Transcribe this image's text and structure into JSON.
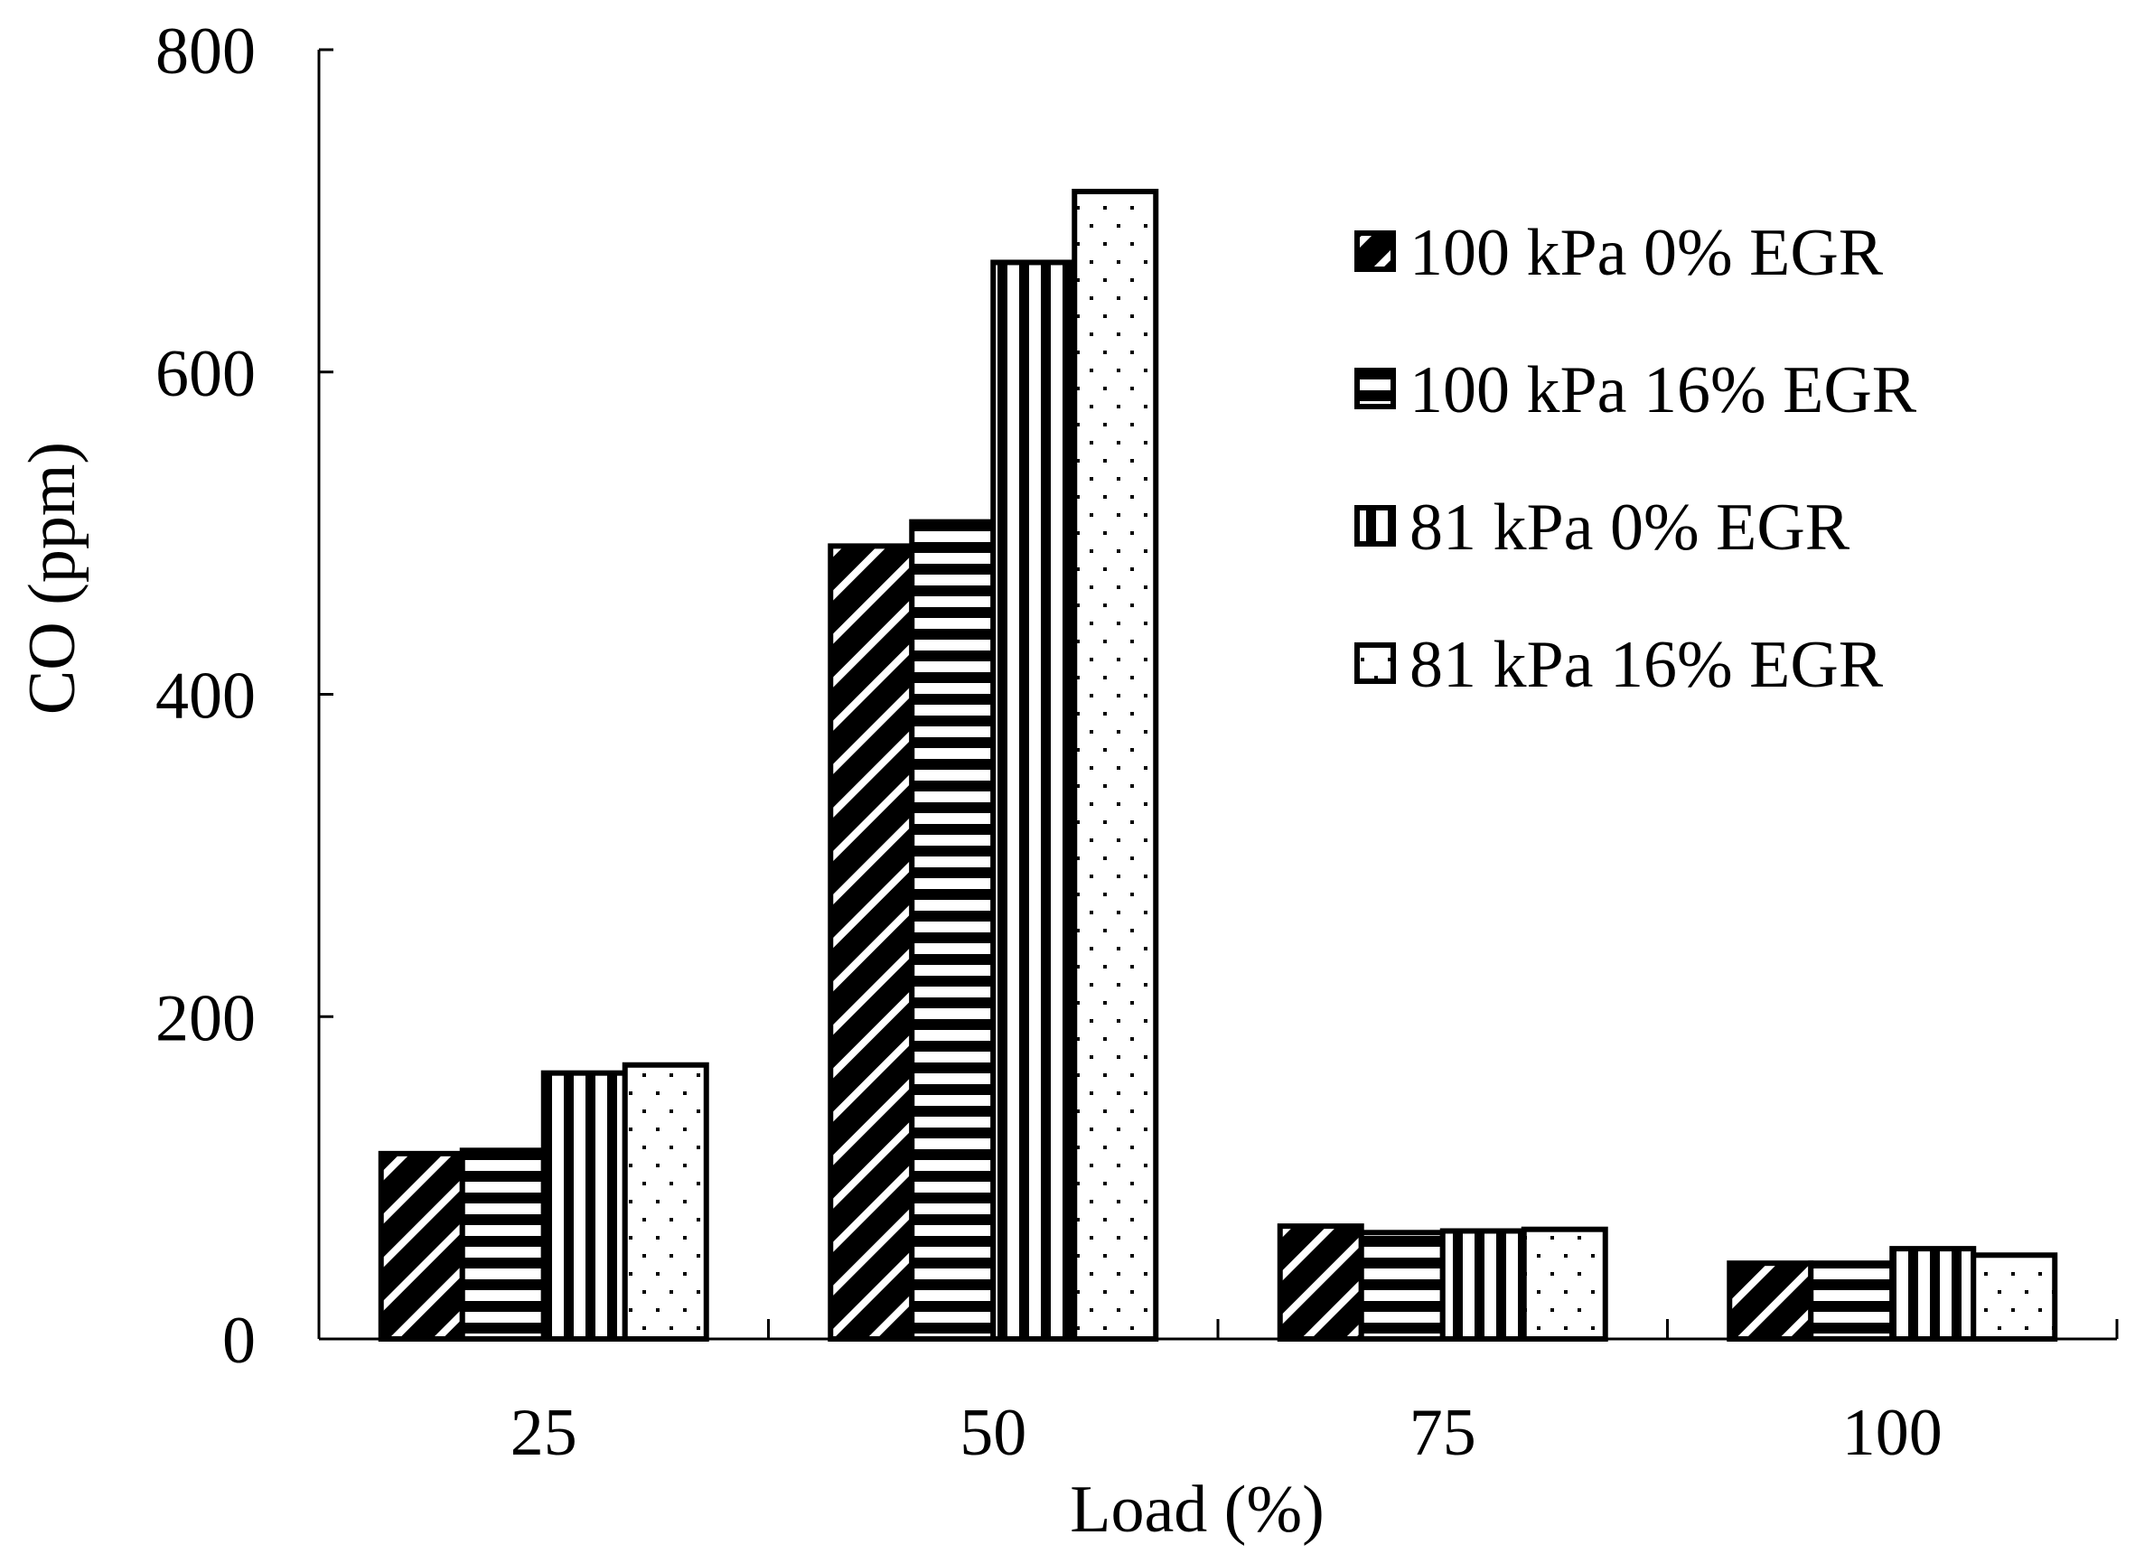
{
  "chart_data": {
    "type": "bar",
    "title": "",
    "xlabel": "Load (%)",
    "ylabel": "CO (ppm)",
    "ylim": [
      0,
      800
    ],
    "yticks": [
      0,
      200,
      400,
      600,
      800
    ],
    "categories": [
      "25",
      "50",
      "75",
      "100"
    ],
    "legend_position": "top-right",
    "series": [
      {
        "name": "100 kPa 0% EGR",
        "pattern": "diagonal",
        "values": [
          115,
          492,
          70,
          47
        ]
      },
      {
        "name": "100 kPa 16% EGR",
        "pattern": "horizontal",
        "values": [
          117,
          507,
          66,
          47
        ]
      },
      {
        "name": "81 kPa 0% EGR",
        "pattern": "vertical",
        "values": [
          165,
          668,
          67,
          56
        ]
      },
      {
        "name": "81 kPa 16% EGR",
        "pattern": "dots",
        "values": [
          170,
          712,
          68,
          52
        ]
      }
    ],
    "colors": {
      "ink": "#000000",
      "fill": "#ffffff"
    }
  }
}
